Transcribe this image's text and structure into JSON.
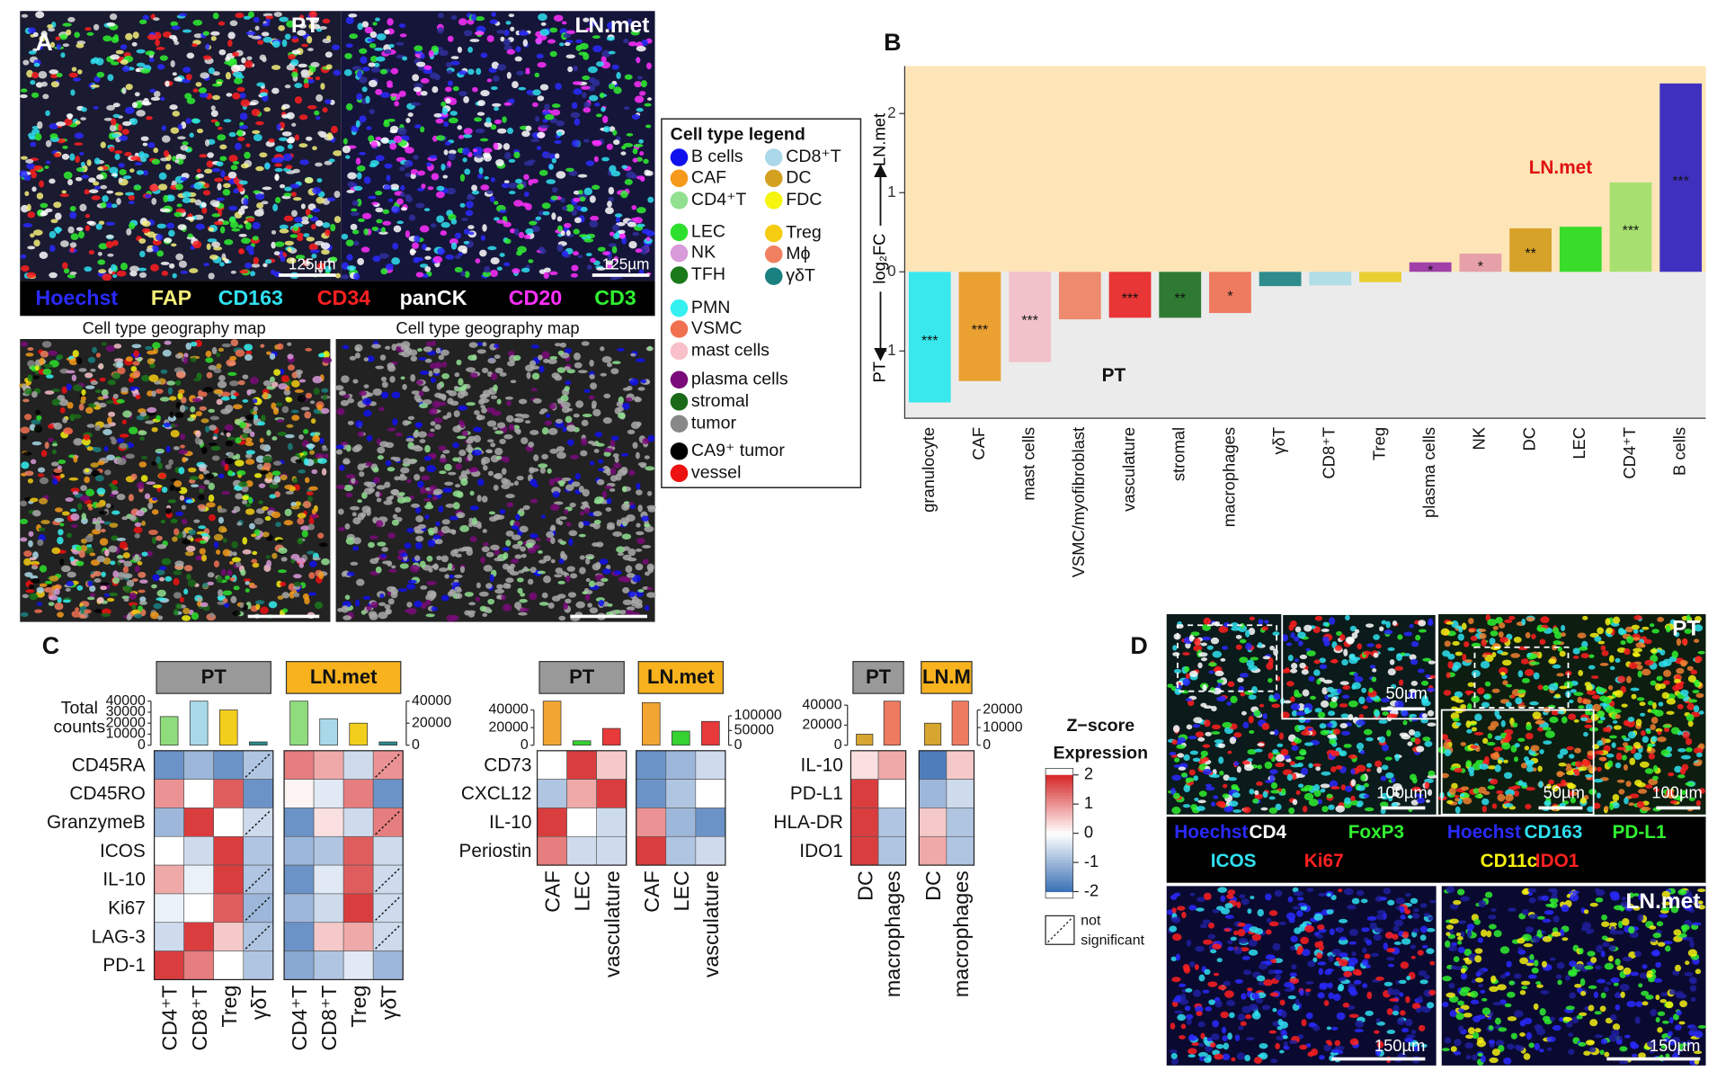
{
  "panel_a": {
    "label": "A",
    "pt_label": "PT",
    "ln_label": "LN.met",
    "scale_bars": [
      "125µm",
      "125µm"
    ],
    "channels": [
      {
        "name": "Hoechst",
        "color": "#2a2aff"
      },
      {
        "name": "FAP",
        "color": "#f5f07a"
      },
      {
        "name": "CD163",
        "color": "#30e0f0"
      },
      {
        "name": "CD34",
        "color": "#ff2020"
      },
      {
        "name": "panCK",
        "color": "#ffffff"
      },
      {
        "name": "CD20",
        "color": "#ff30ff"
      },
      {
        "name": "CD3",
        "color": "#30f030"
      }
    ],
    "map_titles": [
      "Cell type geography map",
      "Cell type geography map"
    ],
    "legend_title": "Cell type legend",
    "legend": [
      {
        "name": "B cells",
        "color": "#1010ee"
      },
      {
        "name": "CAF",
        "color": "#f59a1a"
      },
      {
        "name": "CD4⁺T",
        "color": "#90e090"
      },
      {
        "name": "LEC",
        "color": "#2de02d"
      },
      {
        "name": "NK",
        "color": "#d89ad8"
      },
      {
        "name": "TFH",
        "color": "#1a7a1a"
      },
      {
        "name": "PMN",
        "color": "#35f0f0"
      },
      {
        "name": "VSMC",
        "color": "#f07050"
      },
      {
        "name": "mast cells",
        "color": "#f8c0c8"
      },
      {
        "name": "plasma cells",
        "color": "#7a0a7a"
      },
      {
        "name": "stromal",
        "color": "#1a6a1a"
      },
      {
        "name": "tumor",
        "color": "#888888"
      },
      {
        "name": "CA9⁺ tumor",
        "color": "#000000"
      },
      {
        "name": "vessel",
        "color": "#ee1111"
      },
      {
        "name": "CD8⁺T",
        "color": "#aad8e8"
      },
      {
        "name": "DC",
        "color": "#d4a020"
      },
      {
        "name": "FDC",
        "color": "#f5f510"
      },
      {
        "name": "Treg",
        "color": "#f5cc10"
      },
      {
        "name": "Mϕ",
        "color": "#f08060"
      },
      {
        "name": "γδT",
        "color": "#1a8080"
      }
    ]
  },
  "chart_data": {
    "type": "bar",
    "panel_label": "B",
    "y_label": "log₂FC",
    "y_label_low": "PT",
    "y_label_high": "LN.met",
    "annotation_high": "LN.met",
    "annotation_low": "PT",
    "categories": [
      "granulocyte",
      "CAF",
      "mast cells",
      "VSMC/myofibroblast",
      "vasculature",
      "stromal",
      "macrophages",
      "γδT",
      "CD8⁺T",
      "Treg",
      "plasma cells",
      "NK",
      "DC",
      "LEC",
      "CD4⁺T",
      "B cells"
    ],
    "values": [
      -1.65,
      -1.38,
      -1.14,
      -0.6,
      -0.58,
      -0.58,
      -0.52,
      -0.18,
      -0.17,
      -0.13,
      0.12,
      0.23,
      0.55,
      0.57,
      1.13,
      2.38
    ],
    "significance": [
      "***",
      "***",
      "***",
      null,
      "***",
      "**",
      "*",
      null,
      null,
      null,
      "*",
      "*",
      "**",
      null,
      "***",
      "***"
    ],
    "colors": [
      "#38e8ec",
      "#eaa132",
      "#f2c2cb",
      "#ee8a6e",
      "#e83535",
      "#2e7a33",
      "#ee7a60",
      "#2e8c8c",
      "#b0dde6",
      "#e8cf30",
      "#a040a8",
      "#e6a0a8",
      "#d6a22a",
      "#3adc2a",
      "#a8e070",
      "#4030c0"
    ],
    "ylim": [
      -1.85,
      2.6
    ],
    "yticks": [
      -1,
      0,
      1,
      2
    ],
    "high_color": "#fde5b8",
    "low_color": "#ebebeb"
  },
  "panel_c": {
    "label": "C",
    "total_counts_label": [
      "Total",
      "counts"
    ],
    "groups": [
      {
        "headers": [
          "PT",
          "LN.met"
        ],
        "rows": [
          "CD45RA",
          "CD45RO",
          "GranzymeB",
          "ICOS",
          "IL-10",
          "Ki67",
          "LAG-3",
          "PD-1"
        ],
        "columns": [
          "CD4⁺T",
          "CD8⁺T",
          "Treg",
          "γδT"
        ],
        "column_colors": [
          "#8fdc7d",
          "#a9d9e8",
          "#f2cf1d",
          "#2d8a8a"
        ],
        "pt": {
          "z": [
            [
              -1.5,
              -1,
              -1.5,
              -0.8
            ],
            [
              1,
              0,
              1.5,
              -1.5
            ],
            [
              -1,
              1.8,
              0,
              -0.5
            ],
            [
              0,
              -0.5,
              1.8,
              -0.8
            ],
            [
              0.8,
              -0.2,
              1.8,
              -0.8
            ],
            [
              -0.2,
              0,
              1.5,
              -1
            ],
            [
              -0.5,
              1.8,
              0.5,
              -0.8
            ],
            [
              1.8,
              1.2,
              0,
              -0.8
            ]
          ],
          "not_significant": [
            [
              false,
              false,
              false,
              true
            ],
            [
              false,
              false,
              false,
              false
            ],
            [
              false,
              false,
              false,
              true
            ],
            [
              false,
              false,
              false,
              false
            ],
            [
              false,
              false,
              false,
              true
            ],
            [
              false,
              false,
              false,
              true
            ],
            [
              false,
              false,
              false,
              true
            ],
            [
              false,
              false,
              false,
              false
            ]
          ],
          "counts": [
            26000,
            40000,
            32000,
            3000
          ],
          "ylim": [
            0,
            40000
          ],
          "yticks": [
            0,
            10000,
            20000,
            30000,
            40000
          ]
        },
        "ln": {
          "z": [
            [
              1.2,
              0.8,
              -0.5,
              1
            ],
            [
              0.1,
              -0.3,
              1.2,
              -1.5
            ],
            [
              -1.5,
              0.3,
              -0.5,
              1.2
            ],
            [
              -1,
              -0.8,
              1.5,
              -0.5
            ],
            [
              -1.5,
              -0.3,
              1.5,
              -0.5
            ],
            [
              -1,
              -0.5,
              1.8,
              -0.5
            ],
            [
              -1.5,
              0.5,
              0.8,
              -0.5
            ],
            [
              -1.2,
              -0.8,
              -0.3,
              -1
            ]
          ],
          "not_significant": [
            [
              false,
              false,
              false,
              true
            ],
            [
              false,
              false,
              false,
              false
            ],
            [
              false,
              false,
              false,
              true
            ],
            [
              false,
              false,
              false,
              false
            ],
            [
              false,
              false,
              false,
              true
            ],
            [
              false,
              false,
              false,
              true
            ],
            [
              false,
              false,
              false,
              true
            ],
            [
              false,
              false,
              false,
              false
            ]
          ],
          "counts": [
            40000,
            24000,
            20000,
            3000
          ],
          "ylim": [
            0,
            40000
          ],
          "yticks": [
            0,
            20000,
            40000
          ]
        }
      },
      {
        "headers": [
          "PT",
          "LN.met"
        ],
        "rows": [
          "CD73",
          "CXCL12",
          "IL-10",
          "Periostin"
        ],
        "columns": [
          "CAF",
          "LEC",
          "vasculature"
        ],
        "column_colors": [
          "#f3a532",
          "#35d232",
          "#e83a3a"
        ],
        "pt": {
          "z": [
            [
              0,
              1.8,
              0.5
            ],
            [
              -0.8,
              0.8,
              1.8
            ],
            [
              1.8,
              0,
              -0.5
            ],
            [
              1.2,
              -0.5,
              -0.5
            ]
          ],
          "not_significant": [
            [
              false,
              false,
              false
            ],
            [
              false,
              false,
              false
            ],
            [
              false,
              false,
              false
            ],
            [
              false,
              false,
              false
            ]
          ],
          "counts": [
            50000,
            5000,
            19000
          ],
          "ylim": [
            0,
            50000
          ],
          "yticks": [
            0,
            20000,
            40000
          ]
        },
        "ln": {
          "z": [
            [
              -1.5,
              -1,
              -0.5
            ],
            [
              -1.5,
              -0.8,
              0
            ],
            [
              1,
              -1,
              -1.5
            ],
            [
              1.8,
              -0.8,
              -0.5
            ]
          ],
          "not_significant": [
            [
              false,
              false,
              false
            ],
            [
              false,
              false,
              false
            ],
            [
              false,
              false,
              false
            ],
            [
              false,
              false,
              false
            ]
          ],
          "counts": [
            145000,
            48000,
            81000
          ],
          "ylim": [
            0,
            150000
          ],
          "yticks": [
            0,
            50000,
            100000
          ]
        }
      },
      {
        "headers": [
          "PT",
          "LN.M"
        ],
        "rows": [
          "IL-10",
          "PD-L1",
          "HLA-DR",
          "IDO1"
        ],
        "columns": [
          "DC",
          "macrophages"
        ],
        "column_colors": [
          "#d6a630",
          "#ee7a60"
        ],
        "pt": {
          "z": [
            [
              0.3,
              0.8
            ],
            [
              1.8,
              0
            ],
            [
              1.8,
              -0.8
            ],
            [
              1.8,
              -0.8
            ]
          ],
          "not_significant": [
            [
              false,
              false
            ],
            [
              false,
              false
            ],
            [
              false,
              false
            ],
            [
              false,
              false
            ]
          ],
          "counts": [
            11000,
            44000
          ],
          "ylim": [
            0,
            44000
          ],
          "yticks": [
            0,
            20000,
            40000
          ]
        },
        "ln": {
          "z": [
            [
              -1.8,
              0.5
            ],
            [
              -1,
              -0.5
            ],
            [
              0.5,
              -0.8
            ],
            [
              0.8,
              -0.8
            ]
          ],
          "not_significant": [
            [
              false,
              false
            ],
            [
              false,
              false
            ],
            [
              false,
              false
            ],
            [
              false,
              false
            ]
          ],
          "counts": [
            12500,
            25000
          ],
          "ylim": [
            0,
            25000
          ],
          "yticks": [
            0,
            10000,
            20000
          ]
        }
      }
    ],
    "colorbar": {
      "title": [
        "Z−score",
        "Expression"
      ],
      "lim": [
        -2,
        2
      ],
      "ticks": [
        2,
        1,
        0,
        -1,
        -2
      ],
      "low_color": "#3a6fb5",
      "high_color": "#d62728",
      "not_significant_label": [
        "not",
        "significant"
      ]
    },
    "header_colors": [
      "#999999",
      "#f7b21e"
    ]
  },
  "panel_d": {
    "label": "D",
    "pt_label": "PT",
    "ln_label": "LN.met",
    "top_scales": [
      "50µm",
      "100µm",
      "50µm",
      "100µm"
    ],
    "bottom_scales": [
      "150µm",
      "150µm"
    ],
    "channels_left": [
      [
        {
          "name": "Hoechst",
          "color": "#2a2aff"
        },
        {
          "name": "CD4",
          "color": "#ffffff"
        },
        {
          "name": "FoxP3",
          "color": "#30f030"
        }
      ],
      [
        {
          "name": "ICOS",
          "color": "#30e0f0"
        },
        {
          "name": "Ki67",
          "color": "#ff2020"
        }
      ]
    ],
    "channels_right": [
      [
        {
          "name": "Hoechst",
          "color": "#2a2aff"
        },
        {
          "name": "CD163",
          "color": "#30e0f0"
        },
        {
          "name": "PD-L1",
          "color": "#30f030"
        }
      ],
      [
        {
          "name": "CD11c",
          "color": "#f5f010"
        },
        {
          "name": "IDO1",
          "color": "#ff2020"
        }
      ]
    ]
  }
}
